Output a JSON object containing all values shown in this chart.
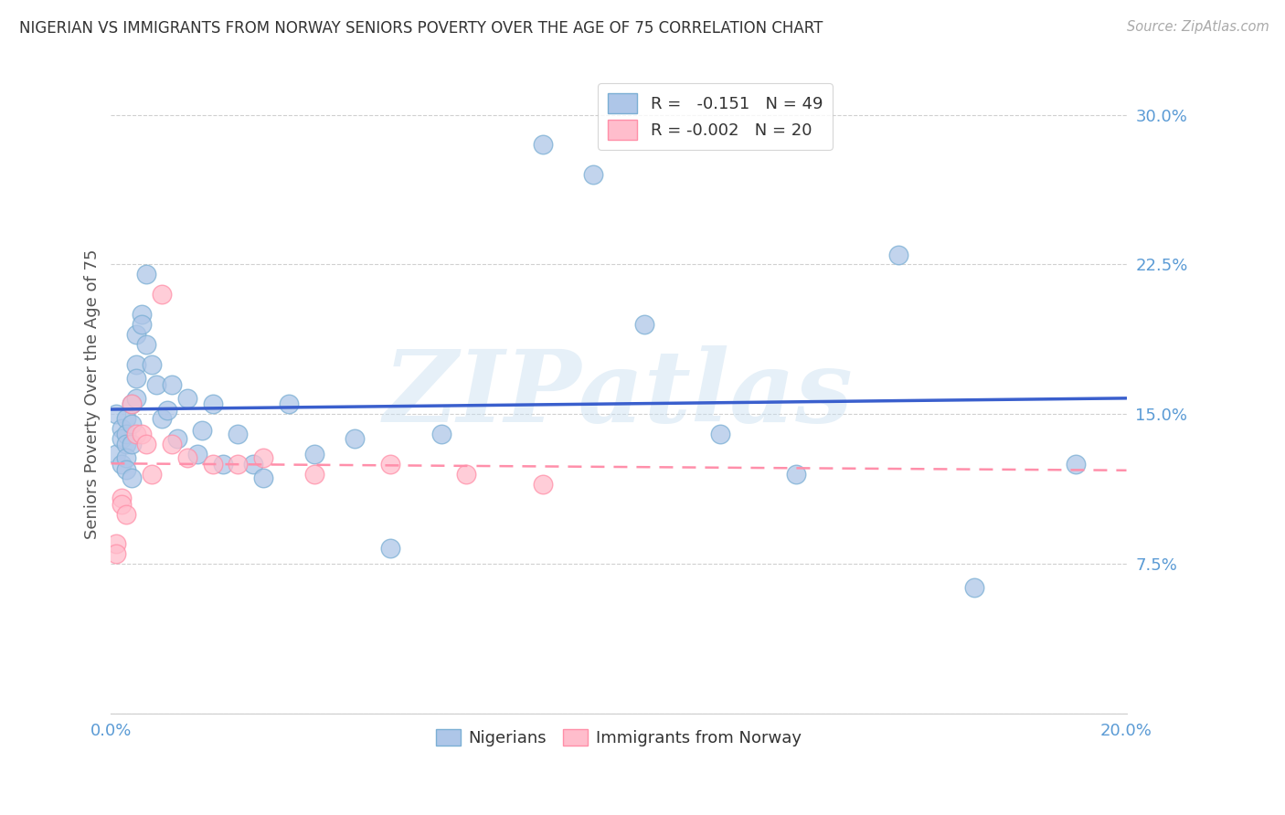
{
  "title": "NIGERIAN VS IMMIGRANTS FROM NORWAY SENIORS POVERTY OVER THE AGE OF 75 CORRELATION CHART",
  "source": "Source: ZipAtlas.com",
  "ylabel": "Seniors Poverty Over the Age of 75",
  "xlim": [
    0.0,
    0.2
  ],
  "ylim": [
    0.0,
    0.32
  ],
  "xticks": [
    0.0,
    0.05,
    0.1,
    0.15,
    0.2
  ],
  "xtick_labels": [
    "0.0%",
    "",
    "",
    "",
    "20.0%"
  ],
  "yticks": [
    0.0,
    0.075,
    0.15,
    0.225,
    0.3
  ],
  "ytick_labels_right": [
    "",
    "7.5%",
    "15.0%",
    "22.5%",
    "30.0%"
  ],
  "background_color": "#ffffff",
  "grid_color": "#d0d0d0",
  "blue_face": "#AEC6E8",
  "blue_edge": "#7BAFD4",
  "pink_face": "#FFBDCC",
  "pink_edge": "#FF8FA8",
  "blue_line_color": "#3A5FCD",
  "pink_line_color": "#FF8FAA",
  "tick_color": "#5B9BD5",
  "watermark": "ZIPatlas",
  "nigerians_x": [
    0.001,
    0.001,
    0.002,
    0.002,
    0.002,
    0.003,
    0.003,
    0.003,
    0.003,
    0.003,
    0.004,
    0.004,
    0.004,
    0.004,
    0.005,
    0.005,
    0.005,
    0.005,
    0.006,
    0.006,
    0.007,
    0.007,
    0.008,
    0.009,
    0.01,
    0.011,
    0.012,
    0.013,
    0.015,
    0.017,
    0.018,
    0.02,
    0.022,
    0.025,
    0.028,
    0.03,
    0.035,
    0.04,
    0.048,
    0.055,
    0.065,
    0.085,
    0.095,
    0.105,
    0.12,
    0.135,
    0.155,
    0.17,
    0.19
  ],
  "nigerians_y": [
    0.15,
    0.13,
    0.143,
    0.138,
    0.125,
    0.148,
    0.14,
    0.135,
    0.128,
    0.122,
    0.155,
    0.145,
    0.135,
    0.118,
    0.19,
    0.175,
    0.168,
    0.158,
    0.2,
    0.195,
    0.22,
    0.185,
    0.175,
    0.165,
    0.148,
    0.152,
    0.165,
    0.138,
    0.158,
    0.13,
    0.142,
    0.155,
    0.125,
    0.14,
    0.125,
    0.118,
    0.155,
    0.13,
    0.138,
    0.083,
    0.14,
    0.285,
    0.27,
    0.195,
    0.14,
    0.12,
    0.23,
    0.063,
    0.125
  ],
  "norway_x": [
    0.001,
    0.001,
    0.002,
    0.002,
    0.003,
    0.004,
    0.005,
    0.006,
    0.007,
    0.008,
    0.01,
    0.012,
    0.015,
    0.02,
    0.025,
    0.03,
    0.04,
    0.055,
    0.07,
    0.085
  ],
  "norway_y": [
    0.085,
    0.08,
    0.108,
    0.105,
    0.1,
    0.155,
    0.14,
    0.14,
    0.135,
    0.12,
    0.21,
    0.135,
    0.128,
    0.125,
    0.125,
    0.128,
    0.12,
    0.125,
    0.12,
    0.115
  ]
}
